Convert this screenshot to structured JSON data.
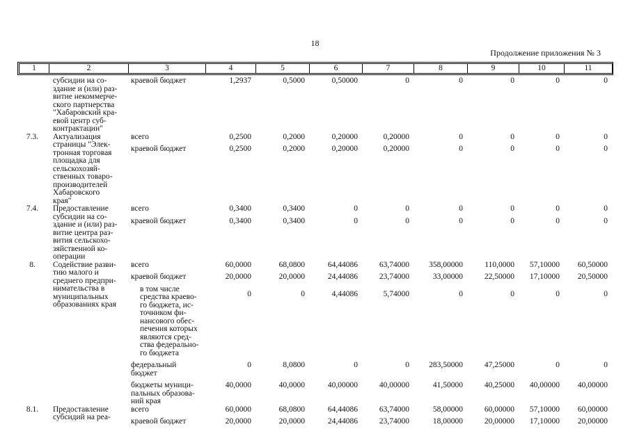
{
  "page": {
    "number": "18",
    "appendix_note": "Продолжение приложения № 3"
  },
  "table": {
    "column_numbers": [
      "1",
      "2",
      "3",
      "4",
      "5",
      "6",
      "7",
      "8",
      "9",
      "10",
      "11"
    ],
    "blocks": [
      {
        "num": "",
        "name": "субсидии на со-\nздание и (или) раз-\nвитие некоммерче-\nского партнерства\n\"Хабаровский кра-\nевой центр суб-\nконтрактации\"",
        "rows": [
          {
            "label": "краевой бюджет",
            "values": [
              "1,2937",
              "0,5000",
              "0,50000",
              "0",
              "0",
              "0",
              "0",
              "0"
            ]
          }
        ]
      },
      {
        "num": "7.3.",
        "name": "Актуализация\nстраницы \"Элек-\nтронная торговая\nплощадка для\nсельскохозяй-\nственных товаро-\nпроизводителей\nХабаровского\nкрая\"",
        "rows": [
          {
            "label": "всего",
            "values": [
              "0,2500",
              "0,2000",
              "0,20000",
              "0,20000",
              "0",
              "0",
              "0",
              "0"
            ]
          },
          {
            "label": "краевой бюджет",
            "values": [
              "0,2500",
              "0,2000",
              "0,20000",
              "0,20000",
              "0",
              "0",
              "0",
              "0"
            ]
          }
        ]
      },
      {
        "num": "7.4.",
        "name": "Предоставление\nсубсидии на со-\nздание и (или) раз-\nвитие центра раз-\nвития сельскохо-\nзяйственной ко-\nоперации",
        "rows": [
          {
            "label": "всего",
            "values": [
              "0,3400",
              "0,3400",
              "0",
              "0",
              "0",
              "0",
              "0",
              "0"
            ]
          },
          {
            "label": "краевой бюджет",
            "values": [
              "0,3400",
              "0,3400",
              "0",
              "0",
              "0",
              "0",
              "0",
              "0"
            ]
          }
        ]
      },
      {
        "num": "8.",
        "name": "Содействие разви-\nтию малого и\nсреднего предпри-\nнимательства в\nмуниципальных\nобразованиях края",
        "rows": [
          {
            "label": "всего",
            "values": [
              "60,0000",
              "68,0800",
              "64,44086",
              "63,74000",
              "358,00000",
              "110,0000",
              "57,10000",
              "60,50000"
            ]
          },
          {
            "label": "краевой бюджет",
            "values": [
              "20,0000",
              "20,0000",
              "24,44086",
              "23,74000",
              "33,00000",
              "22,50000",
              "17,10000",
              "20,50000"
            ]
          },
          {
            "label": "в том числе\nсредства краево-\nго бюджета, ис-\nточником фи-\nнансового обес-\nпечения которых\nявляются сред-\nства федерально-\nго бюджета",
            "indent": true,
            "value_offset": true,
            "values": [
              "0",
              "0",
              "4,44086",
              "5,74000",
              "0",
              "0",
              "0",
              "0"
            ]
          },
          {
            "label": "федеральный\nбюджет",
            "values": [
              "0",
              "8,0800",
              "0",
              "0",
              "283,50000",
              "47,25000",
              "0",
              "0"
            ]
          },
          {
            "label": "бюджеты муници-\nпальных образова-\nний края",
            "values": [
              "40,0000",
              "40,0000",
              "40,00000",
              "40,00000",
              "41,50000",
              "40,25000",
              "40,00000",
              "40,00000"
            ]
          }
        ]
      },
      {
        "num": "8.1.",
        "name": "Предоставление\nсубсидий на реа-",
        "rows": [
          {
            "label": "всего",
            "values": [
              "60,0000",
              "68,0800",
              "64,44086",
              "63,74000",
              "58,00000",
              "60,00000",
              "57,10000",
              "60,00000"
            ]
          },
          {
            "label": "краевой бюджет",
            "values": [
              "20,0000",
              "20,0000",
              "24,44086",
              "23,74000",
              "18,00000",
              "20,00000",
              "17,10000",
              "20,00000"
            ]
          }
        ]
      }
    ]
  }
}
